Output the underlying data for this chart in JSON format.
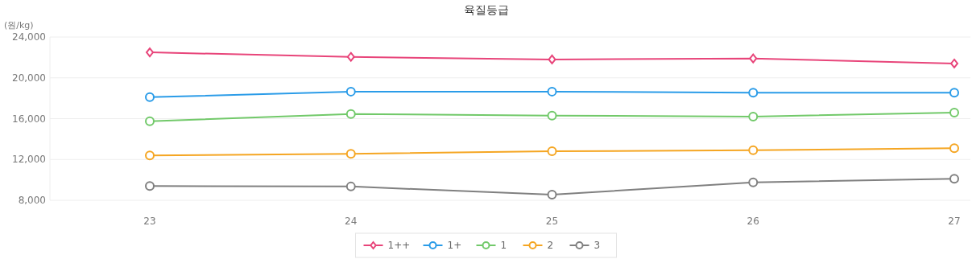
{
  "chart_data": {
    "type": "line",
    "title": "육질등급",
    "ylabel": "(원/kg)",
    "categories": [
      "23",
      "24",
      "25",
      "26",
      "27"
    ],
    "ylim": [
      8000,
      24000
    ],
    "yticks": [
      {
        "value": 8000,
        "label": "8,000"
      },
      {
        "value": 12000,
        "label": "12,000"
      },
      {
        "value": 16000,
        "label": "16,000"
      },
      {
        "value": 20000,
        "label": "20,000"
      },
      {
        "value": 24000,
        "label": "24,000"
      }
    ],
    "grid": "y",
    "legend": "bottom",
    "marker": "circle",
    "series": [
      {
        "name": "1++",
        "color": "#e8457a",
        "marker": "diamond",
        "values": [
          22500,
          22050,
          21800,
          21900,
          21400
        ]
      },
      {
        "name": "1+",
        "color": "#2b9ce8",
        "values": [
          18100,
          18650,
          18650,
          18550,
          18550
        ]
      },
      {
        "name": "1",
        "color": "#72c96a",
        "values": [
          15750,
          16450,
          16300,
          16200,
          16600
        ]
      },
      {
        "name": "2",
        "color": "#f5a623",
        "values": [
          12400,
          12550,
          12800,
          12900,
          13100
        ]
      },
      {
        "name": "3",
        "color": "#808080",
        "values": [
          9400,
          9350,
          8550,
          9750,
          10100
        ]
      }
    ]
  }
}
